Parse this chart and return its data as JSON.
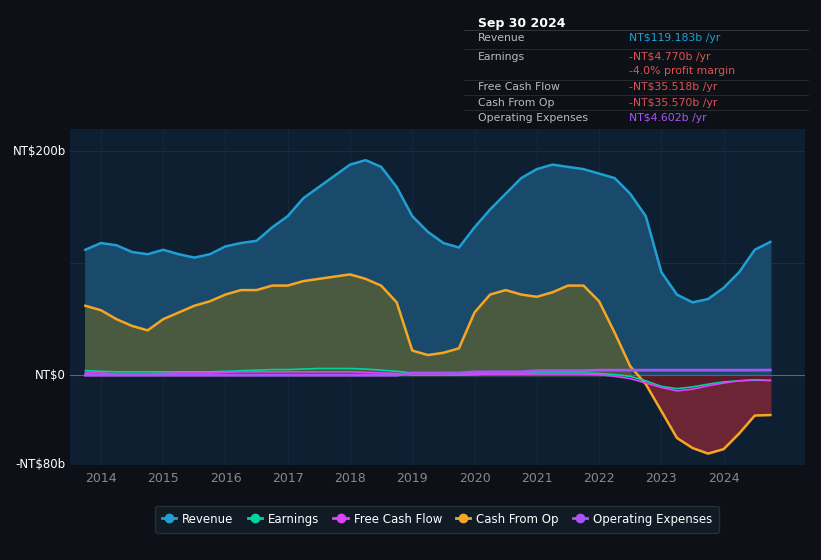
{
  "bg_color": "#0d1117",
  "plot_bg_color": "#0d1f30",
  "grid_color": "#1a3048",
  "ylim": [
    -80,
    220
  ],
  "xlim": [
    2013.5,
    2025.3
  ],
  "xticks": [
    2014,
    2015,
    2016,
    2017,
    2018,
    2019,
    2020,
    2021,
    2022,
    2023,
    2024
  ],
  "series_colors": {
    "revenue": "#1f9fd4",
    "earnings": "#00d4a0",
    "fcf": "#e040fb",
    "cashfromop": "#f5a623",
    "opex": "#a855f7"
  },
  "revenue_fill": "#1a4a6b",
  "cashfromop_fill_pos": "#4a5a40",
  "cashfromop_fill_neg": "#6b2535",
  "earnings_fill_neg": "#5a1a28",
  "legend": [
    {
      "label": "Revenue",
      "color": "#1f9fd4"
    },
    {
      "label": "Earnings",
      "color": "#00d4a0"
    },
    {
      "label": "Free Cash Flow",
      "color": "#e040fb"
    },
    {
      "label": "Cash From Op",
      "color": "#f5a623"
    },
    {
      "label": "Operating Expenses",
      "color": "#a855f7"
    }
  ],
  "revenue_x": [
    2013.75,
    2014.0,
    2014.25,
    2014.5,
    2014.75,
    2015.0,
    2015.25,
    2015.5,
    2015.75,
    2016.0,
    2016.25,
    2016.5,
    2016.75,
    2017.0,
    2017.25,
    2017.5,
    2017.75,
    2018.0,
    2018.25,
    2018.5,
    2018.75,
    2019.0,
    2019.25,
    2019.5,
    2019.75,
    2020.0,
    2020.25,
    2020.5,
    2020.75,
    2021.0,
    2021.25,
    2021.5,
    2021.75,
    2022.0,
    2022.25,
    2022.5,
    2022.75,
    2023.0,
    2023.25,
    2023.5,
    2023.75,
    2024.0,
    2024.25,
    2024.5,
    2024.75
  ],
  "revenue_y": [
    112,
    118,
    116,
    110,
    108,
    112,
    108,
    105,
    108,
    115,
    118,
    120,
    132,
    142,
    158,
    168,
    178,
    188,
    192,
    186,
    168,
    142,
    128,
    118,
    114,
    132,
    148,
    162,
    176,
    184,
    188,
    186,
    184,
    180,
    176,
    162,
    142,
    92,
    72,
    65,
    68,
    78,
    92,
    112,
    119
  ],
  "cashfromop_x": [
    2013.75,
    2014.0,
    2014.25,
    2014.5,
    2014.75,
    2015.0,
    2015.25,
    2015.5,
    2015.75,
    2016.0,
    2016.25,
    2016.5,
    2016.75,
    2017.0,
    2017.25,
    2017.5,
    2017.75,
    2018.0,
    2018.25,
    2018.5,
    2018.75,
    2019.0,
    2019.25,
    2019.5,
    2019.75,
    2020.0,
    2020.25,
    2020.5,
    2020.75,
    2021.0,
    2021.25,
    2021.5,
    2021.75,
    2022.0,
    2022.25,
    2022.5,
    2022.75,
    2023.0,
    2023.25,
    2023.5,
    2023.75,
    2024.0,
    2024.25,
    2024.5,
    2024.75
  ],
  "cashfromop_y": [
    62,
    58,
    50,
    44,
    40,
    50,
    56,
    62,
    66,
    72,
    76,
    76,
    80,
    80,
    84,
    86,
    88,
    90,
    86,
    80,
    65,
    22,
    18,
    20,
    24,
    56,
    72,
    76,
    72,
    70,
    74,
    80,
    80,
    66,
    38,
    8,
    -8,
    -32,
    -56,
    -65,
    -70,
    -66,
    -52,
    -36,
    -35.57
  ],
  "earnings_x": [
    2013.75,
    2014.0,
    2014.25,
    2014.5,
    2014.75,
    2015.0,
    2015.25,
    2015.5,
    2015.75,
    2016.0,
    2016.25,
    2016.5,
    2016.75,
    2017.0,
    2017.25,
    2017.5,
    2017.75,
    2018.0,
    2018.25,
    2018.5,
    2018.75,
    2019.0,
    2019.25,
    2019.5,
    2019.75,
    2020.0,
    2020.25,
    2020.5,
    2020.75,
    2021.0,
    2021.25,
    2021.5,
    2021.75,
    2022.0,
    2022.25,
    2022.5,
    2022.75,
    2023.0,
    2023.25,
    2023.5,
    2023.75,
    2024.0,
    2024.25,
    2024.5,
    2024.75
  ],
  "earnings_y": [
    4,
    3.5,
    3,
    3,
    3,
    3,
    3,
    3,
    3,
    3.5,
    4,
    4.5,
    5,
    5,
    5.5,
    6,
    6,
    6,
    5.5,
    4.5,
    3.5,
    2,
    2,
    1.5,
    1,
    1,
    2,
    2,
    2,
    2,
    2,
    2,
    2,
    1.5,
    0.5,
    -1,
    -5,
    -10,
    -12,
    -10.5,
    -8,
    -6,
    -5,
    -4.5,
    -4.77
  ],
  "fcf_x": [
    2013.75,
    2014.0,
    2014.25,
    2014.5,
    2014.75,
    2015.0,
    2015.25,
    2015.5,
    2015.75,
    2016.0,
    2016.25,
    2016.5,
    2016.75,
    2017.0,
    2017.25,
    2017.5,
    2017.75,
    2018.0,
    2018.25,
    2018.5,
    2018.75,
    2019.0,
    2019.25,
    2019.5,
    2019.75,
    2020.0,
    2020.25,
    2020.5,
    2020.75,
    2021.0,
    2021.25,
    2021.5,
    2021.75,
    2022.0,
    2022.25,
    2022.5,
    2022.75,
    2023.0,
    2023.25,
    2023.5,
    2023.75,
    2024.0,
    2024.25,
    2024.5,
    2024.75
  ],
  "fcf_y": [
    2,
    2,
    1,
    1,
    1,
    1.5,
    2,
    2,
    2,
    2.5,
    3,
    3,
    3,
    3,
    3,
    3,
    3,
    3,
    2.5,
    2,
    1.5,
    0,
    0,
    0,
    0,
    0.5,
    1,
    1,
    1,
    1,
    1,
    1,
    1,
    0.5,
    -1,
    -3,
    -7,
    -11,
    -14,
    -12.5,
    -9.5,
    -7,
    -5,
    -4,
    -4.6
  ],
  "opex_x": [
    2013.75,
    2014.0,
    2014.25,
    2014.5,
    2014.75,
    2015.0,
    2015.25,
    2015.5,
    2015.75,
    2016.0,
    2016.25,
    2016.5,
    2016.75,
    2017.0,
    2017.25,
    2017.5,
    2017.75,
    2018.0,
    2018.25,
    2018.5,
    2018.75,
    2019.0,
    2019.25,
    2019.5,
    2019.75,
    2020.0,
    2020.25,
    2020.5,
    2020.75,
    2021.0,
    2021.25,
    2021.5,
    2021.75,
    2022.0,
    2022.25,
    2022.5,
    2022.75,
    2023.0,
    2023.25,
    2023.5,
    2023.75,
    2024.0,
    2024.25,
    2024.5,
    2024.75
  ],
  "opex_y": [
    0,
    0,
    0,
    0,
    0,
    0,
    0,
    0,
    0,
    0,
    0,
    0,
    0,
    0,
    0,
    0,
    0,
    0,
    0,
    0,
    0,
    2,
    2,
    2,
    2,
    3,
    3,
    3,
    3,
    4,
    4,
    4,
    4,
    4.5,
    4.5,
    4.5,
    4.5,
    4.5,
    4.5,
    4.5,
    4.5,
    4.5,
    4.5,
    4.5,
    4.6
  ]
}
